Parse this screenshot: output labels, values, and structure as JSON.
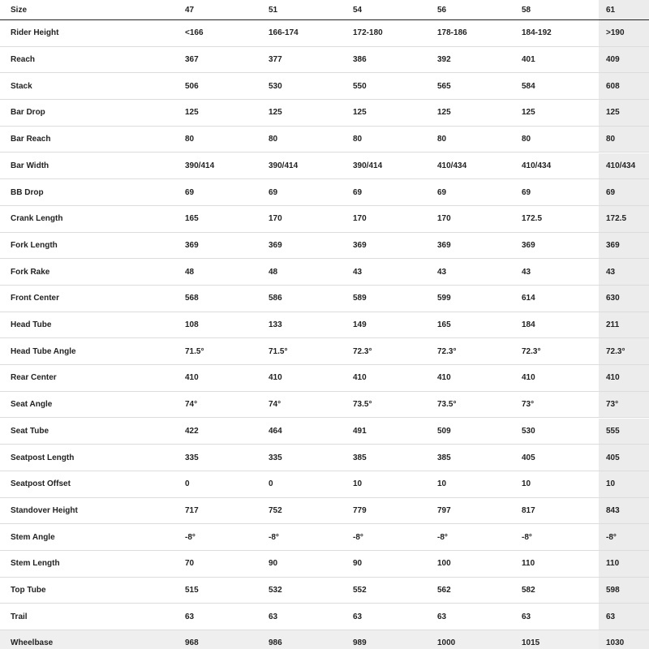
{
  "table": {
    "header": [
      "Size",
      "47",
      "51",
      "54",
      "56",
      "58",
      "61"
    ],
    "rows": [
      [
        "Rider Height",
        "<166",
        "166-174",
        "172-180",
        "178-186",
        "184-192",
        ">190"
      ],
      [
        "Reach",
        "367",
        "377",
        "386",
        "392",
        "401",
        "409"
      ],
      [
        "Stack",
        "506",
        "530",
        "550",
        "565",
        "584",
        "608"
      ],
      [
        "Bar Drop",
        "125",
        "125",
        "125",
        "125",
        "125",
        "125"
      ],
      [
        "Bar Reach",
        "80",
        "80",
        "80",
        "80",
        "80",
        "80"
      ],
      [
        "Bar Width",
        "390/414",
        "390/414",
        "390/414",
        "410/434",
        "410/434",
        "410/434"
      ],
      [
        "BB Drop",
        "69",
        "69",
        "69",
        "69",
        "69",
        "69"
      ],
      [
        "Crank Length",
        "165",
        "170",
        "170",
        "170",
        "172.5",
        "172.5"
      ],
      [
        "Fork Length",
        "369",
        "369",
        "369",
        "369",
        "369",
        "369"
      ],
      [
        "Fork Rake",
        "48",
        "48",
        "43",
        "43",
        "43",
        "43"
      ],
      [
        "Front Center",
        "568",
        "586",
        "589",
        "599",
        "614",
        "630"
      ],
      [
        "Head Tube",
        "108",
        "133",
        "149",
        "165",
        "184",
        "211"
      ],
      [
        "Head Tube Angle",
        "71.5°",
        "71.5°",
        "72.3°",
        "72.3°",
        "72.3°",
        "72.3°"
      ],
      [
        "Rear Center",
        "410",
        "410",
        "410",
        "410",
        "410",
        "410"
      ],
      [
        "Seat Angle",
        "74°",
        "74°",
        "73.5°",
        "73.5°",
        "73°",
        "73°"
      ],
      [
        "Seat Tube",
        "422",
        "464",
        "491",
        "509",
        "530",
        "555"
      ],
      [
        "Seatpost Length",
        "335",
        "335",
        "385",
        "385",
        "405",
        "405"
      ],
      [
        "Seatpost Offset",
        "0",
        "0",
        "10",
        "10",
        "10",
        "10"
      ],
      [
        "Standover Height",
        "717",
        "752",
        "779",
        "797",
        "817",
        "843"
      ],
      [
        "Stem Angle",
        "-8°",
        "-8°",
        "-8°",
        "-8°",
        "-8°",
        "-8°"
      ],
      [
        "Stem Length",
        "70",
        "90",
        "90",
        "100",
        "110",
        "110"
      ],
      [
        "Top Tube",
        "515",
        "532",
        "552",
        "562",
        "582",
        "598"
      ],
      [
        "Trail",
        "63",
        "63",
        "63",
        "63",
        "63",
        "63"
      ],
      [
        "Wheelbase",
        "968",
        "986",
        "989",
        "1000",
        "1015",
        "1030"
      ]
    ]
  }
}
